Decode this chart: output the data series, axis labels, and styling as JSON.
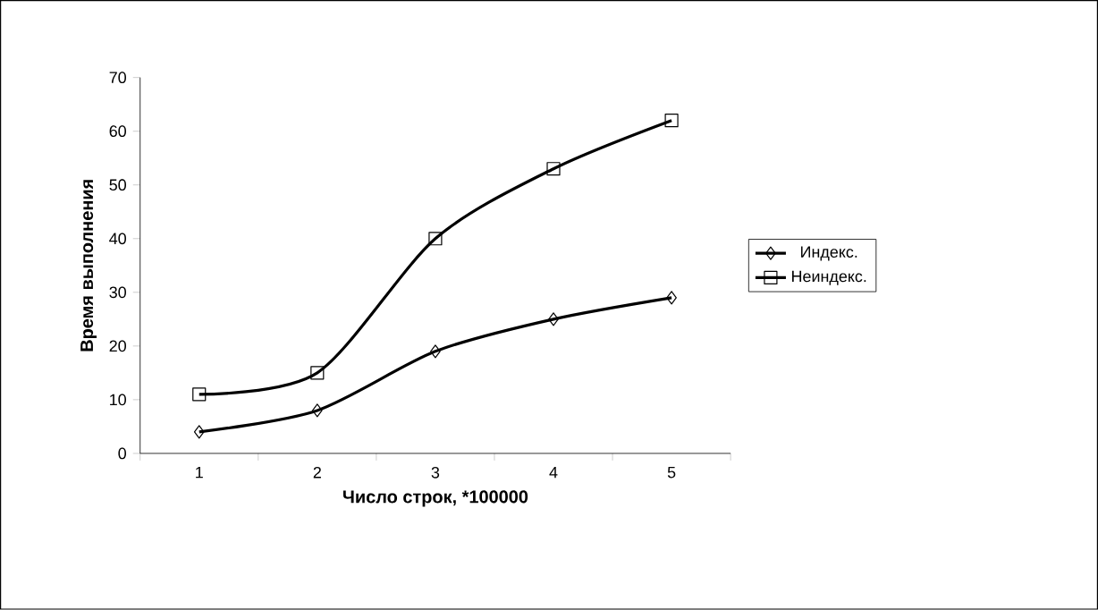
{
  "chart_data": {
    "type": "line",
    "xlabel": "Число строк, *100000",
    "ylabel": "Время выполнения",
    "categories": [
      "1",
      "2",
      "3",
      "4",
      "5"
    ],
    "series": [
      {
        "name": "Индекс.",
        "color": "#000000",
        "marker": "diamond",
        "values": [
          4,
          8,
          19,
          25,
          29
        ]
      },
      {
        "name": "Неиндекс.",
        "color": "#000000",
        "marker": "square",
        "values": [
          11,
          15,
          40,
          53,
          62
        ]
      }
    ],
    "ylim": [
      0,
      70
    ],
    "yticks": [
      0,
      10,
      20,
      30,
      40,
      50,
      60,
      70
    ],
    "grid": false,
    "legend": "right",
    "line_style": "solid"
  }
}
